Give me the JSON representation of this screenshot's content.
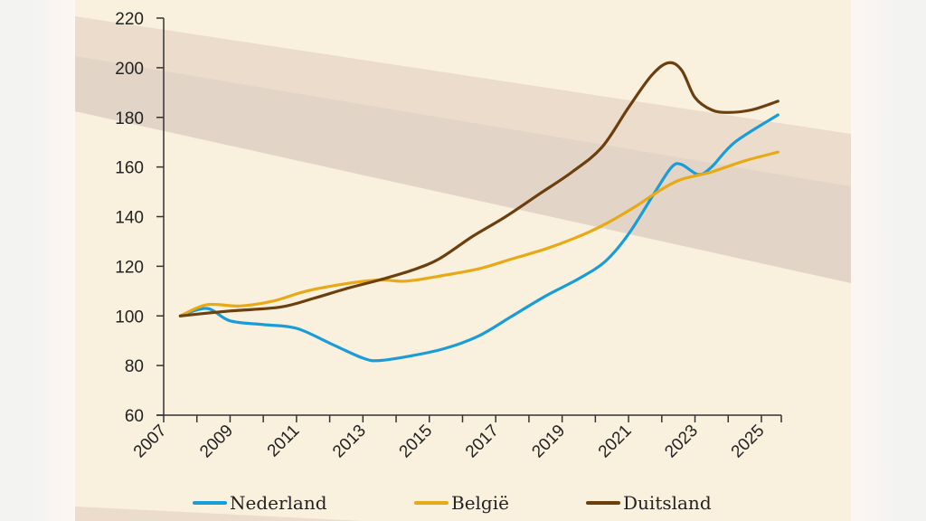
{
  "chart_data": {
    "type": "line",
    "title": "",
    "xlabel": "",
    "ylabel": "",
    "xlim": [
      2007,
      2025.6
    ],
    "ylim": [
      60,
      220
    ],
    "y_ticks": [
      60,
      80,
      100,
      120,
      140,
      160,
      180,
      200,
      220
    ],
    "x_tick_labels": [
      "2007",
      "2009",
      "2011",
      "2013",
      "2015",
      "2017",
      "2019",
      "2021",
      "2023",
      "2025"
    ],
    "x_tick_values": [
      2007,
      2009,
      2011,
      2013,
      2015,
      2017,
      2019,
      2021,
      2023,
      2025
    ],
    "x_minor_ticks": [
      2008,
      2010,
      2012,
      2014,
      2016,
      2018,
      2020,
      2022,
      2024,
      2025.6
    ],
    "grid": false,
    "legend_position": "bottom",
    "series": [
      {
        "name": "Nederland",
        "color": "#1a9cd8",
        "x": [
          2007.5,
          2008.3,
          2009.0,
          2010.0,
          2011.0,
          2012.0,
          2013.0,
          2013.5,
          2014.5,
          2015.5,
          2016.5,
          2017.5,
          2018.5,
          2019.5,
          2020.3,
          2021.0,
          2021.8,
          2022.3,
          2022.6,
          2023.1,
          2023.5,
          2024.2,
          2025.5
        ],
        "values": [
          100,
          103,
          98,
          96.5,
          95,
          89,
          83,
          82,
          84,
          87,
          92,
          100,
          108,
          115,
          122,
          133,
          150,
          160,
          161,
          157,
          160,
          170,
          181
        ]
      },
      {
        "name": "België",
        "color": "#e8a916",
        "x": [
          2007.5,
          2008.3,
          2009.3,
          2010.3,
          2011.3,
          2012.5,
          2013.5,
          2014.3,
          2015.5,
          2016.5,
          2017.5,
          2018.5,
          2019.5,
          2020.3,
          2021.2,
          2022.0,
          2022.6,
          2023.5,
          2024.5,
          2025.5
        ],
        "values": [
          100,
          104.5,
          104,
          106,
          110,
          113,
          114.5,
          114,
          116.5,
          119,
          123,
          127,
          132,
          137,
          144,
          151,
          155,
          158,
          162.5,
          166
        ]
      },
      {
        "name": "Duitsland",
        "color": "#6b3f0e",
        "x": [
          2007.5,
          2009.0,
          2010.5,
          2011.5,
          2012.5,
          2013.5,
          2014.5,
          2015.3,
          2016.3,
          2017.3,
          2018.3,
          2019.3,
          2020.2,
          2021.0,
          2021.7,
          2022.2,
          2022.6,
          2023.0,
          2023.5,
          2024.0,
          2024.7,
          2025.5
        ],
        "values": [
          100,
          102,
          103.5,
          107,
          111,
          114.5,
          118.5,
          123,
          132,
          140,
          149,
          158,
          168,
          184,
          197,
          202,
          199,
          188,
          183,
          182,
          183,
          186.5
        ]
      }
    ]
  },
  "legend": {
    "items": [
      {
        "label": "Nederland",
        "color": "#1a9cd8"
      },
      {
        "label": "België",
        "color": "#e8a916"
      },
      {
        "label": "Duitsland",
        "color": "#6b3f0e"
      }
    ]
  },
  "colors": {
    "panel_background": "#faf0de",
    "band_outer": "#ecdccb",
    "band_inner": "#e2d5c7",
    "axis": "#333333"
  }
}
